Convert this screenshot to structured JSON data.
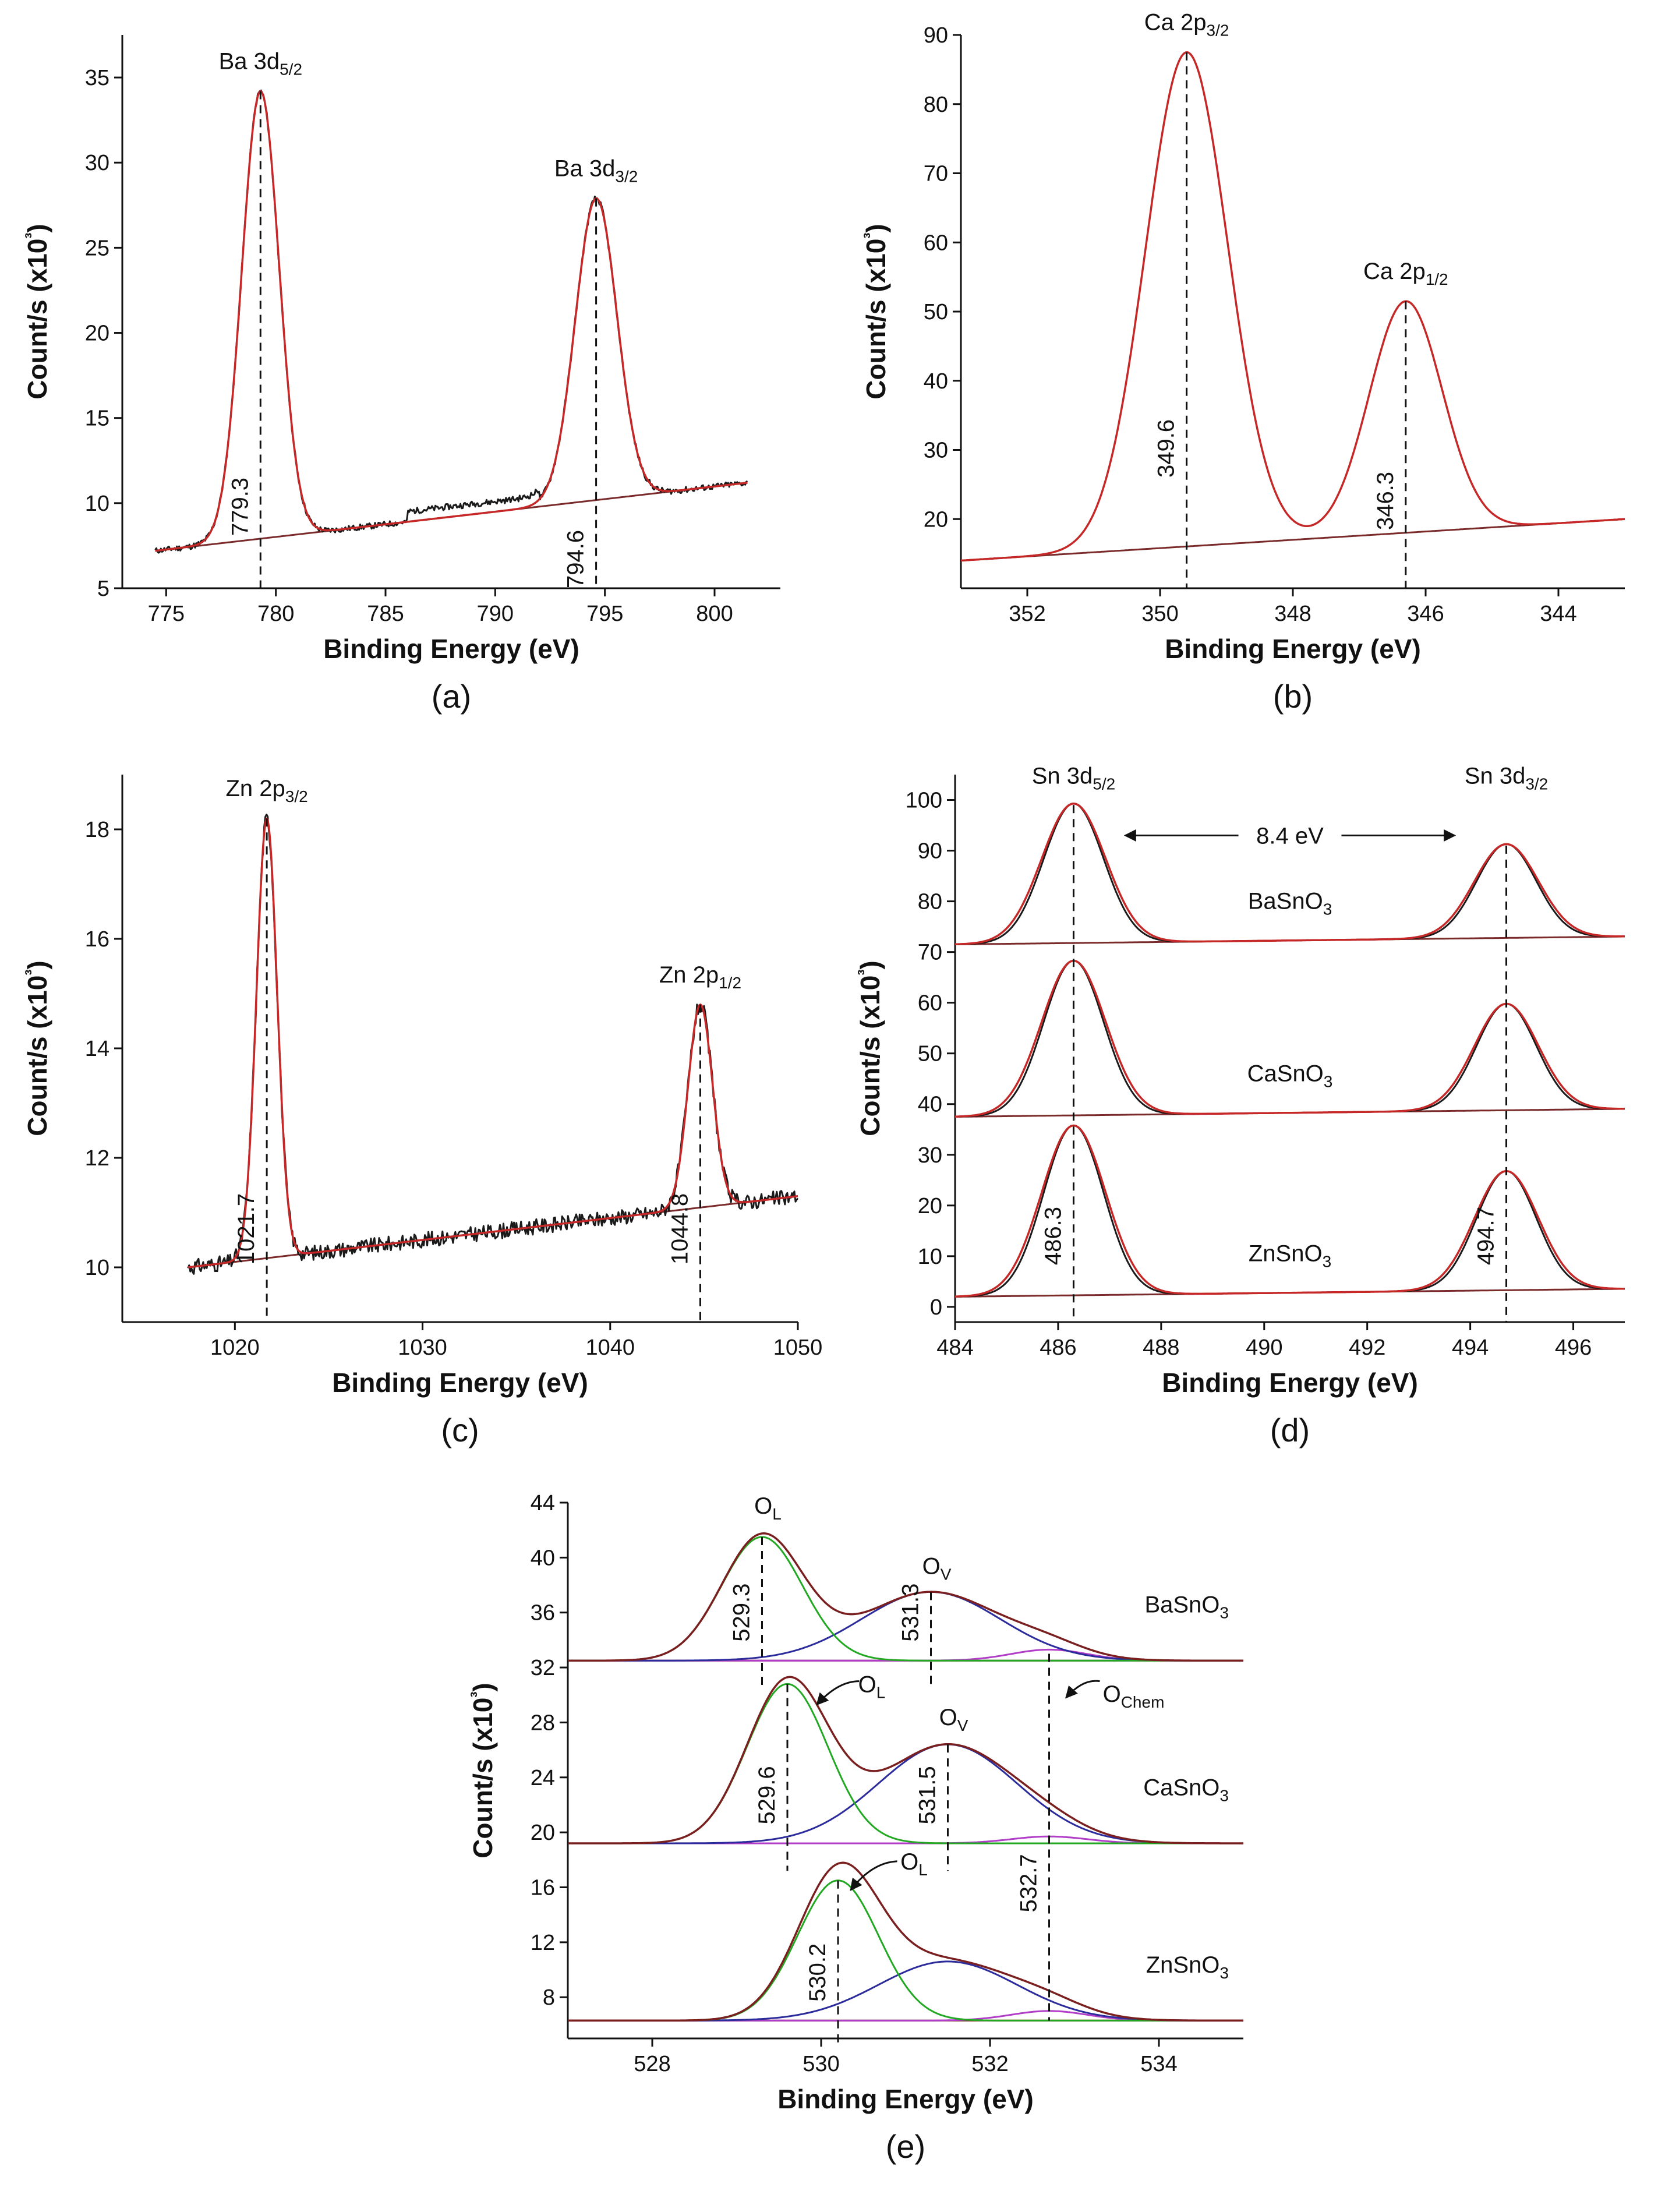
{
  "colors": {
    "measured": "#1a1a1a",
    "fit": "#c62828",
    "background": "#7a2a2a",
    "ol_component": "#22a822",
    "ov_component": "#2b2b9c",
    "ochem_component": "#b03cc8",
    "envelope": "#7a1f1f",
    "axis": "#111111"
  },
  "chart_data": [
    {
      "id": "a",
      "type": "line",
      "caption": "(a)",
      "xlabel": "Binding Energy (eV)",
      "ylabel": "Count/s (x10³)",
      "xlim": [
        773,
        803
      ],
      "ylim": [
        5,
        37.5
      ],
      "x_reversed": false,
      "xticks": [
        775,
        780,
        785,
        790,
        795,
        800
      ],
      "yticks": [
        5,
        10,
        15,
        20,
        25,
        30,
        35
      ],
      "peaks": [
        {
          "label_main": "Ba 3d",
          "label_sub": "5/2",
          "center": 779.3,
          "height": 34.2,
          "value_label": "779.3"
        },
        {
          "label_main": "Ba 3d",
          "label_sub": "3/2",
          "center": 794.6,
          "height": 27.9,
          "value_label": "794.6"
        }
      ],
      "background_line": {
        "x": [
          774.5,
          801.5
        ],
        "y": [
          7.2,
          11.2
        ]
      }
    },
    {
      "id": "b",
      "type": "line",
      "caption": "(b)",
      "xlabel": "Binding Energy (eV)",
      "ylabel": "Count/s (x10³)",
      "xlim": [
        353,
        343
      ],
      "ylim": [
        10,
        90
      ],
      "x_reversed": true,
      "xticks": [
        352,
        350,
        348,
        346,
        344
      ],
      "yticks": [
        20,
        30,
        40,
        50,
        60,
        70,
        80,
        90
      ],
      "peaks": [
        {
          "label_main": "Ca 2p",
          "label_sub": "3/2",
          "center": 349.6,
          "height": 87.5,
          "value_label": "349.6"
        },
        {
          "label_main": "Ca 2p",
          "label_sub": "1/2",
          "center": 346.3,
          "height": 51.5,
          "value_label": "346.3"
        }
      ],
      "background_line": {
        "x": [
          353,
          343
        ],
        "y": [
          14,
          20
        ]
      }
    },
    {
      "id": "c",
      "type": "line",
      "caption": "(c)",
      "xlabel": "Binding Energy (eV)",
      "ylabel": "Count/s (x10³)",
      "xlim": [
        1014,
        1050
      ],
      "ylim": [
        9,
        19
      ],
      "x_reversed": false,
      "xticks": [
        1020,
        1030,
        1040,
        1050
      ],
      "yticks": [
        10,
        12,
        14,
        16,
        18
      ],
      "peaks": [
        {
          "label_main": "Zn 2p",
          "label_sub": "3/2",
          "center": 1021.7,
          "height": 18.2,
          "value_label": "1021.7"
        },
        {
          "label_main": "Zn 2p",
          "label_sub": "1/2",
          "center": 1044.8,
          "height": 14.8,
          "value_label": "1044.8"
        }
      ],
      "background_line": {
        "x": [
          1017.5,
          1050
        ],
        "y": [
          10.0,
          11.3
        ]
      }
    },
    {
      "id": "d",
      "type": "line",
      "caption": "(d)",
      "xlabel": "Binding Energy (eV)",
      "ylabel": "Count/s (x10³)",
      "xlim": [
        484,
        497
      ],
      "ylim": [
        -3,
        105
      ],
      "x_reversed": false,
      "xticks": [
        484,
        486,
        488,
        490,
        492,
        494,
        496
      ],
      "yticks": [
        0,
        10,
        20,
        30,
        40,
        50,
        60,
        70,
        80,
        90,
        100
      ],
      "peak_labels": [
        {
          "main": "Sn 3d",
          "sub": "5/2",
          "x": 486.3
        },
        {
          "main": "Sn 3d",
          "sub": "3/2",
          "x": 494.7
        }
      ],
      "separation_label": "8.4 eV",
      "value_labels": [
        "486.3",
        "494.7"
      ],
      "series": [
        {
          "name": "BaSnO",
          "sub": "3",
          "baseline": 71.5,
          "p1": 99.0,
          "p2": 91.0
        },
        {
          "name": "CaSnO",
          "sub": "3",
          "baseline": 37.5,
          "p1": 68.0,
          "p2": 59.5
        },
        {
          "name": "ZnSnO",
          "sub": "3",
          "baseline": 2.0,
          "p1": 35.5,
          "p2": 26.5
        }
      ]
    },
    {
      "id": "e",
      "type": "line",
      "caption": "(e)",
      "xlabel": "Binding Energy (eV)",
      "ylabel": "Count/s (x10³)",
      "xlim": [
        527,
        535
      ],
      "ylim": [
        5,
        44
      ],
      "x_reversed": false,
      "xticks": [
        528,
        530,
        532,
        534
      ],
      "yticks": [
        8,
        12,
        16,
        20,
        24,
        28,
        32,
        36,
        40,
        44
      ],
      "series": [
        {
          "name": "BaSnO",
          "sub": "3",
          "baseline": 32.5,
          "ol_center": 529.3,
          "ol_height": 41.5,
          "ov_center": 531.3,
          "ov_height": 37.5,
          "ochem_center": 532.7,
          "ochem_height": 33.3,
          "ol_label": "529.3",
          "ov_label": "531.3"
        },
        {
          "name": "CaSnO",
          "sub": "3",
          "baseline": 19.2,
          "ol_center": 529.6,
          "ol_height": 30.8,
          "ov_center": 531.5,
          "ov_height": 26.4,
          "ochem_center": 532.7,
          "ochem_height": 19.7,
          "ol_label": "529.6",
          "ov_label": "531.5"
        },
        {
          "name": "ZnSnO",
          "sub": "3",
          "baseline": 6.3,
          "ol_center": 530.2,
          "ol_height": 16.5,
          "ov_center": 531.5,
          "ov_height": 10.6,
          "ochem_center": 532.7,
          "ochem_height": 7.0,
          "ol_label": "530.2",
          "ochem_label": "532.7"
        }
      ],
      "component_labels": {
        "ol_main": "O",
        "ol_sub": "L",
        "ov_main": "O",
        "ov_sub": "V",
        "ochem_main": "O",
        "ochem_sub": "Chem"
      }
    }
  ]
}
